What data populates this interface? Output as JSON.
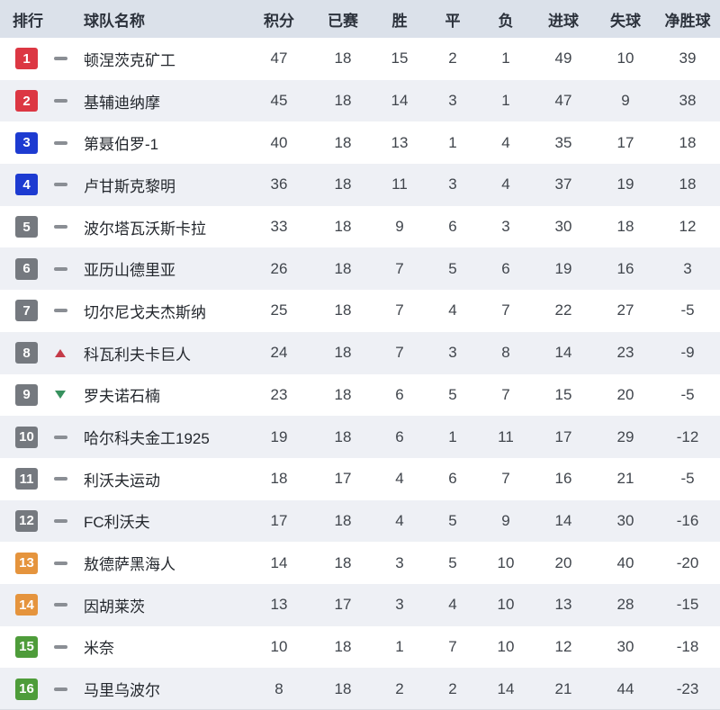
{
  "table": {
    "headers": {
      "rank": "排行",
      "team": "球队名称",
      "points": "积分",
      "played": "已赛",
      "wins": "胜",
      "draws": "平",
      "losses": "负",
      "goals_for": "进球",
      "goals_against": "失球",
      "goal_diff": "净胜球"
    },
    "rows": [
      {
        "rank": 1,
        "badge_color": "red",
        "trend": "same",
        "team": "顿涅茨克矿工",
        "points": 47,
        "played": 18,
        "wins": 15,
        "draws": 2,
        "losses": 1,
        "goals_for": 49,
        "goals_against": 10,
        "goal_diff": 39
      },
      {
        "rank": 2,
        "badge_color": "red",
        "trend": "same",
        "team": "基辅迪纳摩",
        "points": 45,
        "played": 18,
        "wins": 14,
        "draws": 3,
        "losses": 1,
        "goals_for": 47,
        "goals_against": 9,
        "goal_diff": 38
      },
      {
        "rank": 3,
        "badge_color": "blue",
        "trend": "same",
        "team": "第聂伯罗-1",
        "points": 40,
        "played": 18,
        "wins": 13,
        "draws": 1,
        "losses": 4,
        "goals_for": 35,
        "goals_against": 17,
        "goal_diff": 18
      },
      {
        "rank": 4,
        "badge_color": "blue",
        "trend": "same",
        "team": "卢甘斯克黎明",
        "points": 36,
        "played": 18,
        "wins": 11,
        "draws": 3,
        "losses": 4,
        "goals_for": 37,
        "goals_against": 19,
        "goal_diff": 18
      },
      {
        "rank": 5,
        "badge_color": "gray",
        "trend": "same",
        "team": "波尔塔瓦沃斯卡拉",
        "points": 33,
        "played": 18,
        "wins": 9,
        "draws": 6,
        "losses": 3,
        "goals_for": 30,
        "goals_against": 18,
        "goal_diff": 12
      },
      {
        "rank": 6,
        "badge_color": "gray",
        "trend": "same",
        "team": "亚历山德里亚",
        "points": 26,
        "played": 18,
        "wins": 7,
        "draws": 5,
        "losses": 6,
        "goals_for": 19,
        "goals_against": 16,
        "goal_diff": 3
      },
      {
        "rank": 7,
        "badge_color": "gray",
        "trend": "same",
        "team": "切尔尼戈夫杰斯纳",
        "points": 25,
        "played": 18,
        "wins": 7,
        "draws": 4,
        "losses": 7,
        "goals_for": 22,
        "goals_against": 27,
        "goal_diff": -5
      },
      {
        "rank": 8,
        "badge_color": "gray",
        "trend": "up",
        "team": "科瓦利夫卡巨人",
        "points": 24,
        "played": 18,
        "wins": 7,
        "draws": 3,
        "losses": 8,
        "goals_for": 14,
        "goals_against": 23,
        "goal_diff": -9
      },
      {
        "rank": 9,
        "badge_color": "gray",
        "trend": "down",
        "team": "罗夫诺石楠",
        "points": 23,
        "played": 18,
        "wins": 6,
        "draws": 5,
        "losses": 7,
        "goals_for": 15,
        "goals_against": 20,
        "goal_diff": -5
      },
      {
        "rank": 10,
        "badge_color": "gray",
        "trend": "same",
        "team": "哈尔科夫金工1925",
        "points": 19,
        "played": 18,
        "wins": 6,
        "draws": 1,
        "losses": 11,
        "goals_for": 17,
        "goals_against": 29,
        "goal_diff": -12
      },
      {
        "rank": 11,
        "badge_color": "gray",
        "trend": "same",
        "team": "利沃夫运动",
        "points": 18,
        "played": 17,
        "wins": 4,
        "draws": 6,
        "losses": 7,
        "goals_for": 16,
        "goals_against": 21,
        "goal_diff": -5
      },
      {
        "rank": 12,
        "badge_color": "gray",
        "trend": "same",
        "team": "FC利沃夫",
        "points": 17,
        "played": 18,
        "wins": 4,
        "draws": 5,
        "losses": 9,
        "goals_for": 14,
        "goals_against": 30,
        "goal_diff": -16
      },
      {
        "rank": 13,
        "badge_color": "orange",
        "trend": "same",
        "team": "敖德萨黑海人",
        "points": 14,
        "played": 18,
        "wins": 3,
        "draws": 5,
        "losses": 10,
        "goals_for": 20,
        "goals_against": 40,
        "goal_diff": -20
      },
      {
        "rank": 14,
        "badge_color": "orange",
        "trend": "same",
        "team": "因胡莱茨",
        "points": 13,
        "played": 17,
        "wins": 3,
        "draws": 4,
        "losses": 10,
        "goals_for": 13,
        "goals_against": 28,
        "goal_diff": -15
      },
      {
        "rank": 15,
        "badge_color": "green",
        "trend": "same",
        "team": "米奈",
        "points": 10,
        "played": 18,
        "wins": 1,
        "draws": 7,
        "losses": 10,
        "goals_for": 12,
        "goals_against": 30,
        "goal_diff": -18
      },
      {
        "rank": 16,
        "badge_color": "green",
        "trend": "same",
        "team": "马里乌波尔",
        "points": 8,
        "played": 18,
        "wins": 2,
        "draws": 2,
        "losses": 14,
        "goals_for": 21,
        "goals_against": 44,
        "goal_diff": -23
      }
    ]
  },
  "colors": {
    "badges": {
      "red": "#dc3743",
      "blue": "#1d3bd1",
      "gray": "#75797f",
      "orange": "#e5943d",
      "green": "#4e9c3a"
    },
    "header_bg": "#dbe1ea",
    "row_alt_bg": "#eef0f5",
    "trend_up": "#c43a48",
    "trend_down": "#37915e"
  }
}
